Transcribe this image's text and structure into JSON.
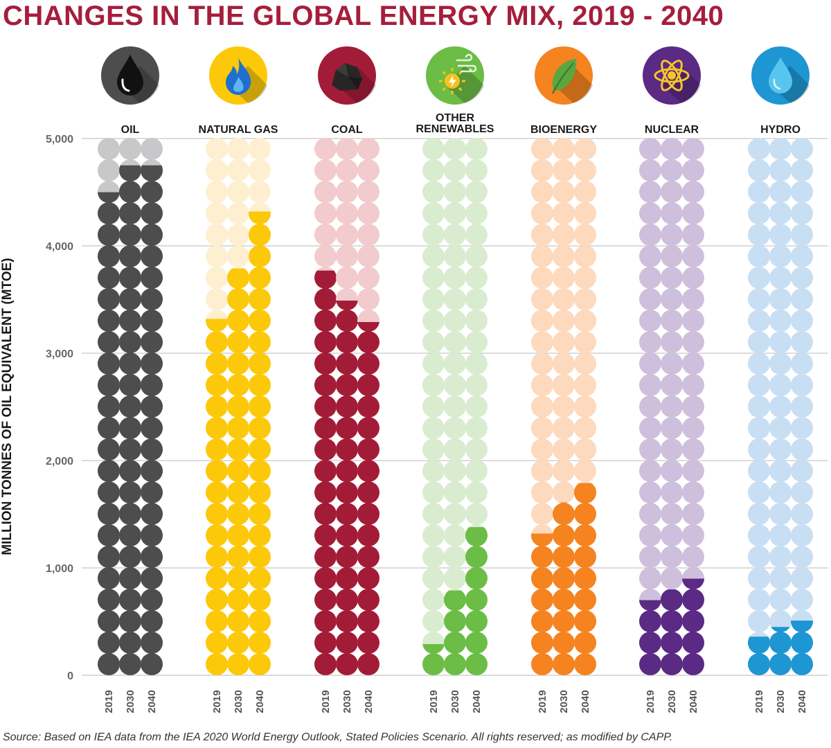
{
  "title": "CHANGES IN THE GLOBAL ENERGY MIX, 2019 - 2040",
  "source": "Source: Based on IEA data from the IEA 2020 World Energy Outlook, Stated Policies Scenario. All rights reserved; as modified by CAPP.",
  "chart_data": {
    "type": "bar",
    "title": "CHANGES IN THE GLOBAL ENERGY MIX, 2019 - 2040",
    "ylabel": "MILLION TONNES OF OIL EQUIVALENT (MTOE)",
    "ylim": [
      0,
      5000
    ],
    "yticks": [
      "0",
      "1,000",
      "2,000",
      "3,000",
      "4,000",
      "5,000"
    ],
    "grid": true,
    "x_years": [
      "2019",
      "2030",
      "2040"
    ],
    "categories": [
      {
        "name": "OIL",
        "icon": "oil-drop-icon",
        "color": "#4d4d4d",
        "light": "#c8c8ca",
        "values": [
          4500,
          4750,
          4750
        ]
      },
      {
        "name": "NATURAL GAS",
        "icon": "gas-flame-icon",
        "color": "#fcc90a",
        "light": "#feefd0",
        "values": [
          3320,
          3790,
          4320
        ]
      },
      {
        "name": "COAL",
        "icon": "coal-icon",
        "color": "#a31c37",
        "light": "#f2cbcf",
        "values": [
          3770,
          3490,
          3290
        ]
      },
      {
        "name": "OTHER RENEWABLES",
        "icon": "renewables-icon",
        "color": "#6bbd45",
        "light": "#d9ecd0",
        "values": [
          290,
          790,
          1380
        ]
      },
      {
        "name": "BIOENERGY",
        "icon": "leaf-icon",
        "color": "#f58320",
        "light": "#fdd9bd",
        "values": [
          1320,
          1610,
          1790
        ]
      },
      {
        "name": "NUCLEAR",
        "icon": "atom-icon",
        "color": "#5b2a84",
        "light": "#cec0dc",
        "values": [
          700,
          800,
          900
        ]
      },
      {
        "name": "HYDRO",
        "icon": "water-drop-icon",
        "color": "#1e96d3",
        "light": "#c8def3",
        "values": [
          360,
          450,
          510
        ]
      }
    ]
  }
}
